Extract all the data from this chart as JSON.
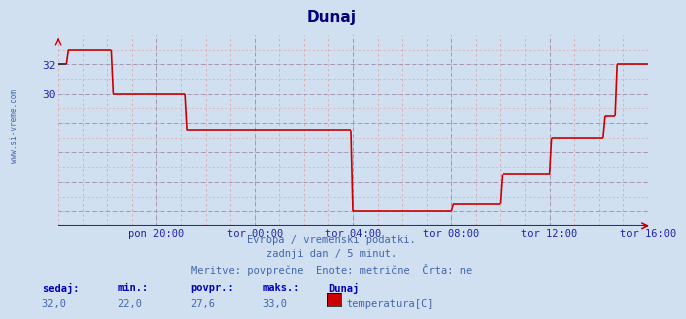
{
  "title": "Dunaj",
  "bg_color": "#d0e0f0",
  "plot_bg_color": "#d0e0f0",
  "line_color": "#cc0000",
  "line_color_black": "#222222",
  "grid_color_major": "#9999bb",
  "grid_color_minor": "#ddaaaa",
  "axis_color": "#2222aa",
  "text_color": "#4466aa",
  "watermark": "www.si-vreme.com",
  "subtitle1": "Evropa / vremenski podatki.",
  "subtitle2": "zadnji dan / 5 minut.",
  "subtitle3": "Meritve: povprečne  Enote: metrične  Črta: ne",
  "footer_label1": "sedaj:",
  "footer_label2": "min.:",
  "footer_label3": "povpr.:",
  "footer_label4": "maks.:",
  "footer_label5": "Dunaj",
  "footer_val1": "32,0",
  "footer_val2": "22,0",
  "footer_val3": "27,6",
  "footer_val4": "33,0",
  "footer_series": "temperatura[C]",
  "ylim": [
    21.0,
    34.0
  ],
  "yticks": [
    22,
    24,
    26,
    28,
    30,
    32
  ],
  "ytick_show": [
    30,
    32
  ],
  "xlabel_ticks": [
    "pon 20:00",
    "tor 00:00",
    "tor 04:00",
    "tor 08:00",
    "tor 12:00",
    "tor 16:00"
  ],
  "x_tick_positions": [
    48,
    96,
    144,
    192,
    240,
    288
  ],
  "temp_segments": [
    {
      "x": [
        0,
        4
      ],
      "y": [
        32.0,
        32.0
      ],
      "color": "#222222"
    },
    {
      "x": [
        4,
        5
      ],
      "y": [
        32.0,
        33.0
      ],
      "color": "#cc0000"
    },
    {
      "x": [
        5,
        26
      ],
      "y": [
        33.0,
        33.0
      ],
      "color": "#cc0000"
    },
    {
      "x": [
        26,
        27
      ],
      "y": [
        33.0,
        30.0
      ],
      "color": "#cc0000"
    },
    {
      "x": [
        27,
        62
      ],
      "y": [
        30.0,
        30.0
      ],
      "color": "#cc0000"
    },
    {
      "x": [
        62,
        63
      ],
      "y": [
        30.0,
        27.5
      ],
      "color": "#cc0000"
    },
    {
      "x": [
        63,
        143
      ],
      "y": [
        27.5,
        27.5
      ],
      "color": "#cc0000"
    },
    {
      "x": [
        143,
        144
      ],
      "y": [
        27.5,
        22.0
      ],
      "color": "#cc0000"
    },
    {
      "x": [
        144,
        192
      ],
      "y": [
        22.0,
        22.0
      ],
      "color": "#cc0000"
    },
    {
      "x": [
        192,
        193
      ],
      "y": [
        22.0,
        22.5
      ],
      "color": "#cc0000"
    },
    {
      "x": [
        193,
        216
      ],
      "y": [
        22.5,
        22.5
      ],
      "color": "#cc0000"
    },
    {
      "x": [
        216,
        217
      ],
      "y": [
        22.5,
        24.5
      ],
      "color": "#cc0000"
    },
    {
      "x": [
        217,
        240
      ],
      "y": [
        24.5,
        24.5
      ],
      "color": "#cc0000"
    },
    {
      "x": [
        240,
        241
      ],
      "y": [
        24.5,
        27.0
      ],
      "color": "#cc0000"
    },
    {
      "x": [
        241,
        266
      ],
      "y": [
        27.0,
        27.0
      ],
      "color": "#cc0000"
    },
    {
      "x": [
        266,
        267
      ],
      "y": [
        27.0,
        28.5
      ],
      "color": "#cc0000"
    },
    {
      "x": [
        267,
        272
      ],
      "y": [
        28.5,
        28.5
      ],
      "color": "#cc0000"
    },
    {
      "x": [
        272,
        273
      ],
      "y": [
        28.5,
        32.0
      ],
      "color": "#cc0000"
    },
    {
      "x": [
        273,
        288
      ],
      "y": [
        32.0,
        32.0
      ],
      "color": "#cc0000"
    }
  ]
}
